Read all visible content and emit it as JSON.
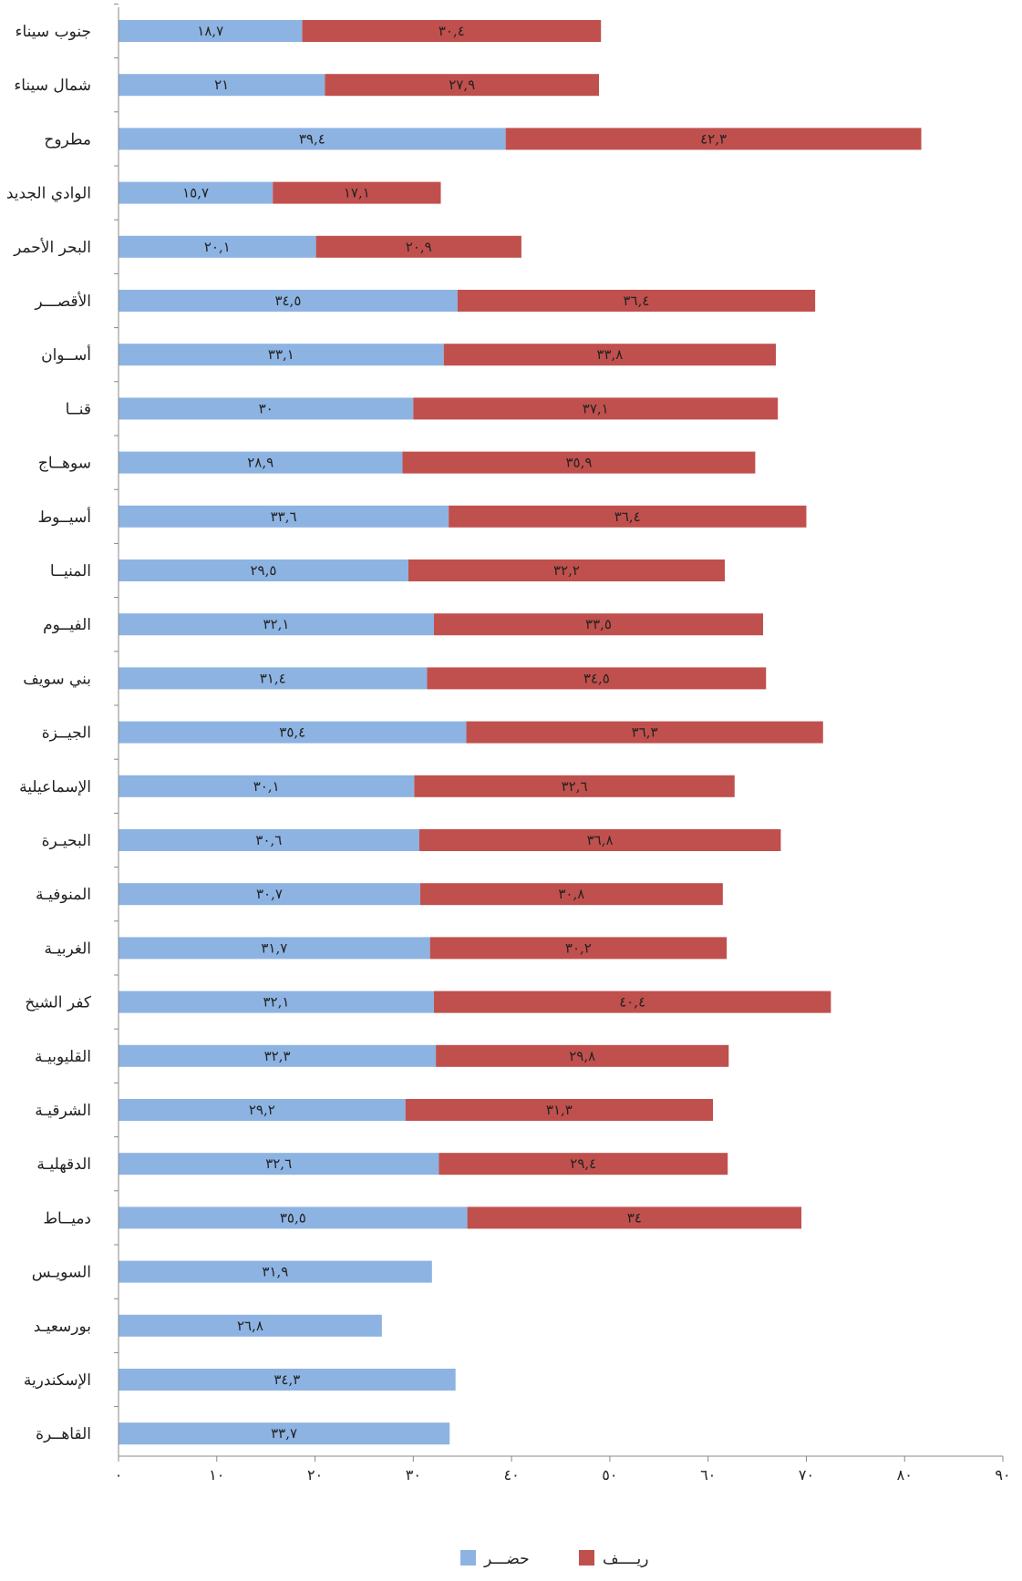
{
  "chart_data": {
    "type": "bar",
    "orientation": "horizontal",
    "stacked": true,
    "categories": [
      "جنوب سيناء",
      "شمال سيناء",
      "مطروح",
      "الوادي الجديد",
      "البحر الأحمر",
      "الأقصـــر",
      "أســوان",
      "قنــا",
      "سوهــاج",
      "أسيــوط",
      "المنيــا",
      "الفيــوم",
      "بني سويف",
      "الجيــزة",
      "الإسماعيلية",
      "البحيـرة",
      "المنوفيـة",
      "الغربيـة",
      "كفر الشيخ",
      "القليوبيـة",
      "الشرقيـة",
      "الدقهليـة",
      "دميــاط",
      "السويـس",
      "بورسعيـد",
      "الإسكندرية",
      "القاهــرة"
    ],
    "series": [
      {
        "name": "حضـــر",
        "color": "#8db3e2",
        "values": [
          18.7,
          21,
          39.4,
          15.7,
          20.1,
          34.5,
          33.1,
          30,
          28.9,
          33.6,
          29.5,
          32.1,
          31.4,
          35.4,
          30.1,
          30.6,
          30.7,
          31.7,
          32.1,
          32.3,
          29.2,
          32.6,
          35.5,
          31.9,
          26.8,
          34.3,
          33.7
        ],
        "labels": [
          "١٨,٧",
          "٢١",
          "٣٩,٤",
          "١٥,٧",
          "٢٠,١",
          "٣٤,٥",
          "٣٣,١",
          "٣٠",
          "٢٨,٩",
          "٣٣,٦",
          "٢٩,٥",
          "٣٢,١",
          "٣١,٤",
          "٣٥,٤",
          "٣٠,١",
          "٣٠,٦",
          "٣٠,٧",
          "٣١,٧",
          "٣٢,١",
          "٣٢,٣",
          "٢٩,٢",
          "٣٢,٦",
          "٣٥,٥",
          "٣١,٩",
          "٢٦,٨",
          "٣٤,٣",
          "٣٣,٧"
        ]
      },
      {
        "name": "ريــــف",
        "color": "#c0504d",
        "values": [
          30.4,
          27.9,
          42.3,
          17.1,
          20.9,
          36.4,
          33.8,
          37.1,
          35.9,
          36.4,
          32.2,
          33.5,
          34.5,
          36.3,
          32.6,
          36.8,
          30.8,
          30.2,
          40.4,
          29.8,
          31.3,
          29.4,
          34,
          null,
          null,
          null,
          null
        ],
        "labels": [
          "٣٠,٤",
          "٢٧,٩",
          "٤٢,٣",
          "١٧,١",
          "٢٠,٩",
          "٣٦,٤",
          "٣٣,٨",
          "٣٧,١",
          "٣٥,٩",
          "٣٦,٤",
          "٣٢,٢",
          "٣٣,٥",
          "٣٤,٥",
          "٣٦,٣",
          "٣٢,٦",
          "٣٦,٨",
          "٣٠,٨",
          "٣٠,٢",
          "٤٠,٤",
          "٢٩,٨",
          "٣١,٣",
          "٢٩,٤",
          "٣٤",
          "",
          "",
          "",
          ""
        ]
      }
    ],
    "xlim": [
      0,
      90
    ],
    "xticks": [
      0,
      10,
      20,
      30,
      40,
      50,
      60,
      70,
      80,
      90
    ],
    "xtick_labels": [
      "٠",
      "١٠",
      "٢٠",
      "٣٠",
      "٤٠",
      "٥٠",
      "٦٠",
      "٧٠",
      "٨٠",
      "٩٠"
    ],
    "title": "",
    "xlabel": "",
    "ylabel": "",
    "grid": false,
    "legend_position": "bottom"
  }
}
